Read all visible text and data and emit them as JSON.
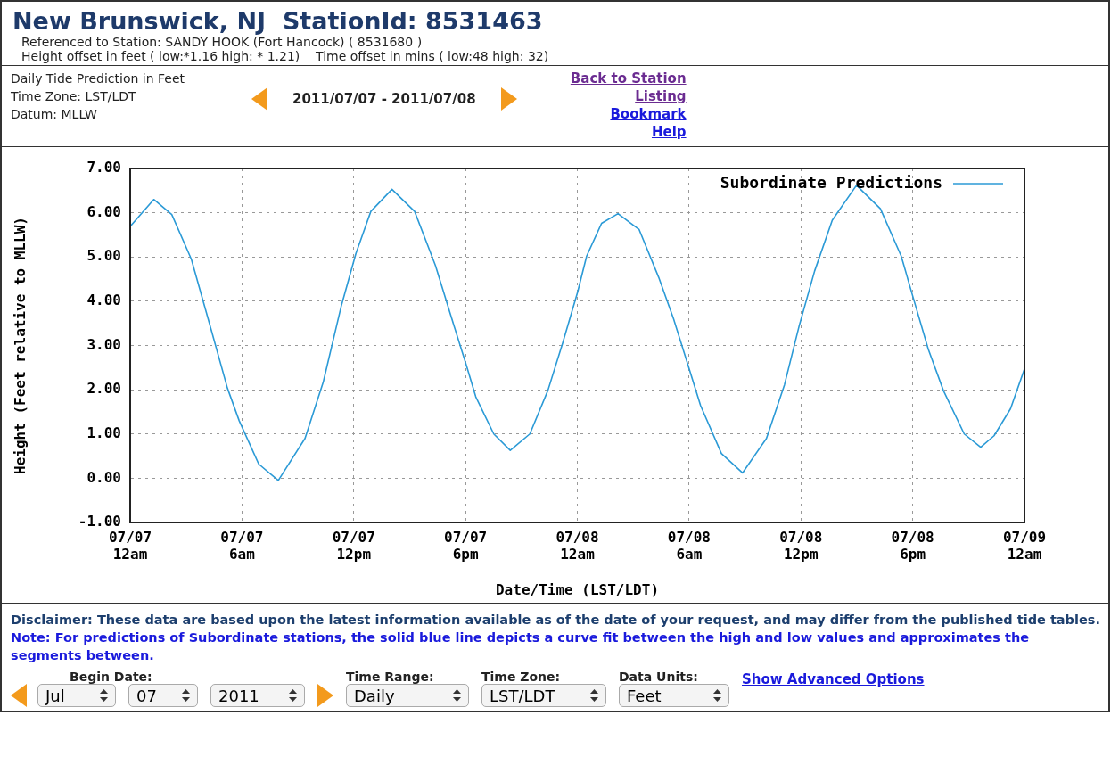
{
  "chart_data": {
    "type": "line",
    "title": "New Brunswick, NJ  StationId: 8531463",
    "subtitle": "Referenced to Station: SANDY HOOK (Fort Hancock) ( 8531680 )",
    "xlabel": "Date/Time (LST/LDT)",
    "ylabel": "Height (Feet relative to MLLW)",
    "annotations": [
      "Height offset in feet ( low:*1.16 high: * 1.21)    Time offset in mins ( low:48 high: 32)",
      "Daily Tide Prediction in Feet",
      "Time Zone: LST/LDT",
      "Datum: MLLW",
      "2011/07/07 - 2011/07/08",
      "Back to Station",
      "Listing",
      "Bookmark",
      "Help",
      "Disclaimer: These data are based upon the latest information available as of the date of your request, and may differ from the published tide tables.",
      "Note: For predictions of Subordinate stations, the solid blue line depicts a curve fit between the high and low values and approximates the segments between.",
      "Begin Date:",
      "Jul",
      "07",
      "2011",
      "Time Range:",
      "Daily",
      "Time Zone:",
      "LST/LDT",
      "Data Units:",
      "Feet",
      "Show Advanced Options"
    ],
    "x": [
      "2011-07-07T00:00",
      "2011-07-07T01:16",
      "2011-07-07T02:14",
      "2011-07-07T03:17",
      "2011-07-07T04:14",
      "2011-07-07T05:13",
      "2011-07-07T05:51",
      "2011-07-07T06:54",
      "2011-07-07T07:57",
      "2011-07-07T09:23",
      "2011-07-07T10:22",
      "2011-07-07T11:19",
      "2011-07-07T12:07",
      "2011-07-07T12:55",
      "2011-07-07T14:03",
      "2011-07-07T15:16",
      "2011-07-07T16:23",
      "2011-07-07T17:16",
      "2011-07-07T18:04",
      "2011-07-07T18:33",
      "2011-07-07T19:31",
      "2011-07-07T20:24",
      "2011-07-07T21:27",
      "2011-07-07T22:25",
      "2011-07-07T23:13",
      "2011-07-08T00:01",
      "2011-07-08T00:30",
      "2011-07-08T01:18",
      "2011-07-08T02:11",
      "2011-07-08T03:19",
      "2011-07-08T04:22",
      "2011-07-08T05:10",
      "2011-07-08T05:58",
      "2011-07-08T06:37",
      "2011-07-08T07:44",
      "2011-07-08T08:52",
      "2011-07-08T10:09",
      "2011-07-08T11:07",
      "2011-07-08T11:55",
      "2011-07-08T12:44",
      "2011-07-08T13:41",
      "2011-07-08T14:59",
      "2011-07-08T16:16",
      "2011-07-08T17:23",
      "2011-07-08T18:02",
      "2011-07-08T18:50",
      "2011-07-08T19:39",
      "2011-07-08T20:46",
      "2011-07-08T21:39",
      "2011-07-08T22:22",
      "2011-07-08T23:15",
      "2011-07-08T23:59"
    ],
    "series": [
      {
        "name": "Subordinate Predictions",
        "color": "#2b9ad6",
        "values": [
          5.69,
          6.3,
          5.96,
          4.95,
          3.53,
          2.04,
          1.3,
          0.32,
          -0.05,
          0.9,
          2.18,
          3.87,
          5.08,
          6.03,
          6.53,
          6.03,
          4.81,
          3.6,
          2.52,
          1.84,
          1.0,
          0.63,
          1.0,
          1.98,
          3.06,
          4.21,
          5.02,
          5.76,
          5.98,
          5.62,
          4.54,
          3.6,
          2.52,
          1.64,
          0.56,
          0.12,
          0.9,
          2.11,
          3.46,
          4.68,
          5.83,
          6.62,
          6.09,
          5.02,
          4.07,
          2.92,
          1.98,
          1.0,
          0.7,
          0.96,
          1.57,
          2.45
        ]
      }
    ],
    "xlim": [
      "2011-07-07T00:00",
      "2011-07-09T00:00"
    ],
    "xticks": [
      {
        "value": "2011-07-07T00:00",
        "label": "07/07 12am"
      },
      {
        "value": "2011-07-07T06:00",
        "label": "07/07 6am"
      },
      {
        "value": "2011-07-07T12:00",
        "label": "07/07 12pm"
      },
      {
        "value": "2011-07-07T18:00",
        "label": "07/07 6pm"
      },
      {
        "value": "2011-07-08T00:00",
        "label": "07/08 12am"
      },
      {
        "value": "2011-07-08T06:00",
        "label": "07/08 6am"
      },
      {
        "value": "2011-07-08T12:00",
        "label": "07/08 12pm"
      },
      {
        "value": "2011-07-08T18:00",
        "label": "07/08 6pm"
      },
      {
        "value": "2011-07-09T00:00",
        "label": "07/09 12am"
      }
    ],
    "ylim": [
      -1,
      7
    ],
    "yticks": [
      {
        "value": -1,
        "label": "-1.00"
      },
      {
        "value": 0,
        "label": "0.00"
      },
      {
        "value": 1,
        "label": "1.00"
      },
      {
        "value": 2,
        "label": "2.00"
      },
      {
        "value": 3,
        "label": "3.00"
      },
      {
        "value": 4,
        "label": "4.00"
      },
      {
        "value": 5,
        "label": "5.00"
      },
      {
        "value": 6,
        "label": "6.00"
      },
      {
        "value": 7,
        "label": "7.00"
      }
    ],
    "grid": true,
    "legend": "top right",
    "marker": "none",
    "line_style": "solid"
  }
}
